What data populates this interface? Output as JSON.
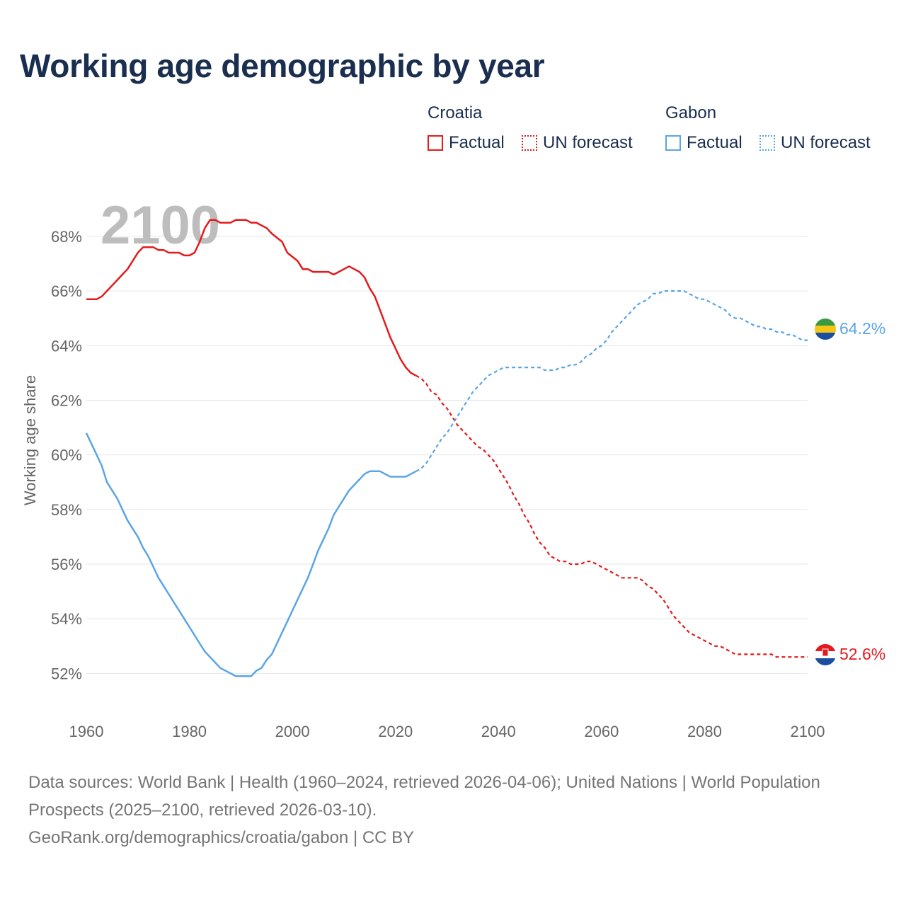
{
  "title": "Working age demographic by year",
  "legend": {
    "groups": [
      {
        "country": "Croatia",
        "color": "#e41a1c",
        "factual_label": "Factual",
        "forecast_label": "UN forecast"
      },
      {
        "country": "Gabon",
        "color": "#5aa5e6",
        "factual_label": "Factual",
        "forecast_label": "UN forecast"
      }
    ]
  },
  "source": {
    "line1": "Data sources: World Bank | Health (1960–2024, retrieved 2026-04-06); United Nations | World Population Prospects (2025–2100, retrieved 2026-03-10).",
    "line2": "GeoRank.org/demographics/croatia/gabon | CC BY"
  },
  "chart_data": {
    "type": "line",
    "title": "Working age demographic by year",
    "current_year_label": "2100",
    "xlabel": "",
    "ylabel": "Working age share",
    "xlim": [
      1960,
      2100
    ],
    "ylim": [
      51,
      69.5
    ],
    "x_ticks": [
      1960,
      1980,
      2000,
      2020,
      2040,
      2060,
      2080,
      2100
    ],
    "y_ticks": [
      52,
      54,
      56,
      58,
      60,
      62,
      64,
      66,
      68
    ],
    "y_tick_labels": [
      "52%",
      "54%",
      "56%",
      "58%",
      "60%",
      "62%",
      "64%",
      "66%",
      "68%"
    ],
    "grid": true,
    "forecast_start": 2024,
    "series": [
      {
        "name": "Croatia",
        "color": "#e41a1c",
        "end_label": "52.6%",
        "flag": "croatia",
        "points": [
          [
            1960,
            65.7
          ],
          [
            1962,
            65.7
          ],
          [
            1963,
            65.8
          ],
          [
            1965,
            66.2
          ],
          [
            1967,
            66.6
          ],
          [
            1968,
            66.8
          ],
          [
            1970,
            67.4
          ],
          [
            1971,
            67.6
          ],
          [
            1973,
            67.6
          ],
          [
            1974,
            67.5
          ],
          [
            1975,
            67.5
          ],
          [
            1976,
            67.4
          ],
          [
            1977,
            67.4
          ],
          [
            1978,
            67.4
          ],
          [
            1979,
            67.3
          ],
          [
            1980,
            67.3
          ],
          [
            1981,
            67.4
          ],
          [
            1982,
            67.8
          ],
          [
            1983,
            68.3
          ],
          [
            1984,
            68.6
          ],
          [
            1985,
            68.6
          ],
          [
            1986,
            68.5
          ],
          [
            1988,
            68.5
          ],
          [
            1989,
            68.6
          ],
          [
            1991,
            68.6
          ],
          [
            1992,
            68.5
          ],
          [
            1993,
            68.5
          ],
          [
            1994,
            68.4
          ],
          [
            1995,
            68.3
          ],
          [
            1996,
            68.1
          ],
          [
            1998,
            67.8
          ],
          [
            1999,
            67.4
          ],
          [
            2001,
            67.1
          ],
          [
            2002,
            66.8
          ],
          [
            2003,
            66.8
          ],
          [
            2004,
            66.7
          ],
          [
            2006,
            66.7
          ],
          [
            2007,
            66.7
          ],
          [
            2008,
            66.6
          ],
          [
            2009,
            66.7
          ],
          [
            2010,
            66.8
          ],
          [
            2011,
            66.9
          ],
          [
            2012,
            66.8
          ],
          [
            2013,
            66.7
          ],
          [
            2014,
            66.5
          ],
          [
            2015,
            66.1
          ],
          [
            2016,
            65.8
          ],
          [
            2017,
            65.3
          ],
          [
            2018,
            64.8
          ],
          [
            2019,
            64.3
          ],
          [
            2020,
            63.9
          ],
          [
            2021,
            63.5
          ],
          [
            2022,
            63.2
          ],
          [
            2023,
            63.0
          ],
          [
            2024,
            62.9
          ],
          [
            2025,
            62.8
          ],
          [
            2026,
            62.6
          ],
          [
            2027,
            62.3
          ],
          [
            2028,
            62.2
          ],
          [
            2029,
            61.9
          ],
          [
            2030,
            61.7
          ],
          [
            2031,
            61.4
          ],
          [
            2032,
            61.1
          ],
          [
            2033,
            60.9
          ],
          [
            2034,
            60.7
          ],
          [
            2035,
            60.5
          ],
          [
            2036,
            60.3
          ],
          [
            2037,
            60.2
          ],
          [
            2038,
            60.0
          ],
          [
            2039,
            59.8
          ],
          [
            2040,
            59.5
          ],
          [
            2041,
            59.2
          ],
          [
            2042,
            58.9
          ],
          [
            2043,
            58.5
          ],
          [
            2044,
            58.2
          ],
          [
            2045,
            57.8
          ],
          [
            2046,
            57.5
          ],
          [
            2047,
            57.1
          ],
          [
            2048,
            56.8
          ],
          [
            2049,
            56.6
          ],
          [
            2050,
            56.3
          ],
          [
            2051,
            56.2
          ],
          [
            2052,
            56.1
          ],
          [
            2053,
            56.1
          ],
          [
            2054,
            56.0
          ],
          [
            2055,
            56.0
          ],
          [
            2056,
            56.0
          ],
          [
            2057,
            56.1
          ],
          [
            2058,
            56.1
          ],
          [
            2059,
            56.0
          ],
          [
            2060,
            55.9
          ],
          [
            2061,
            55.8
          ],
          [
            2062,
            55.7
          ],
          [
            2063,
            55.6
          ],
          [
            2064,
            55.5
          ],
          [
            2065,
            55.5
          ],
          [
            2066,
            55.5
          ],
          [
            2067,
            55.5
          ],
          [
            2068,
            55.4
          ],
          [
            2069,
            55.2
          ],
          [
            2070,
            55.1
          ],
          [
            2071,
            54.9
          ],
          [
            2072,
            54.7
          ],
          [
            2073,
            54.4
          ],
          [
            2074,
            54.1
          ],
          [
            2075,
            53.9
          ],
          [
            2076,
            53.7
          ],
          [
            2077,
            53.5
          ],
          [
            2078,
            53.4
          ],
          [
            2079,
            53.3
          ],
          [
            2080,
            53.2
          ],
          [
            2081,
            53.1
          ],
          [
            2082,
            53.0
          ],
          [
            2083,
            53.0
          ],
          [
            2084,
            52.9
          ],
          [
            2085,
            52.8
          ],
          [
            2086,
            52.7
          ],
          [
            2087,
            52.7
          ],
          [
            2090,
            52.7
          ],
          [
            2092,
            52.7
          ],
          [
            2093,
            52.7
          ],
          [
            2094,
            52.6
          ],
          [
            2096,
            52.6
          ],
          [
            2098,
            52.6
          ],
          [
            2100,
            52.6
          ]
        ]
      },
      {
        "name": "Gabon",
        "color": "#5aa5e6",
        "end_label": "64.2%",
        "flag": "gabon",
        "points": [
          [
            1960,
            60.8
          ],
          [
            1961,
            60.4
          ],
          [
            1962,
            60.0
          ],
          [
            1963,
            59.6
          ],
          [
            1964,
            59.0
          ],
          [
            1965,
            58.7
          ],
          [
            1966,
            58.4
          ],
          [
            1967,
            58.0
          ],
          [
            1968,
            57.6
          ],
          [
            1969,
            57.3
          ],
          [
            1970,
            57.0
          ],
          [
            1971,
            56.6
          ],
          [
            1972,
            56.3
          ],
          [
            1973,
            55.9
          ],
          [
            1974,
            55.5
          ],
          [
            1975,
            55.2
          ],
          [
            1976,
            54.9
          ],
          [
            1977,
            54.6
          ],
          [
            1978,
            54.3
          ],
          [
            1979,
            54.0
          ],
          [
            1980,
            53.7
          ],
          [
            1981,
            53.4
          ],
          [
            1982,
            53.1
          ],
          [
            1983,
            52.8
          ],
          [
            1984,
            52.6
          ],
          [
            1985,
            52.4
          ],
          [
            1986,
            52.2
          ],
          [
            1987,
            52.1
          ],
          [
            1988,
            52.0
          ],
          [
            1989,
            51.9
          ],
          [
            1990,
            51.9
          ],
          [
            1991,
            51.9
          ],
          [
            1992,
            51.9
          ],
          [
            1993,
            52.1
          ],
          [
            1994,
            52.2
          ],
          [
            1995,
            52.5
          ],
          [
            1996,
            52.7
          ],
          [
            1997,
            53.1
          ],
          [
            1998,
            53.5
          ],
          [
            1999,
            53.9
          ],
          [
            2000,
            54.3
          ],
          [
            2001,
            54.7
          ],
          [
            2002,
            55.1
          ],
          [
            2003,
            55.5
          ],
          [
            2004,
            56.0
          ],
          [
            2005,
            56.5
          ],
          [
            2006,
            56.9
          ],
          [
            2007,
            57.3
          ],
          [
            2008,
            57.8
          ],
          [
            2009,
            58.1
          ],
          [
            2010,
            58.4
          ],
          [
            2011,
            58.7
          ],
          [
            2012,
            58.9
          ],
          [
            2013,
            59.1
          ],
          [
            2014,
            59.3
          ],
          [
            2015,
            59.4
          ],
          [
            2016,
            59.4
          ],
          [
            2017,
            59.4
          ],
          [
            2018,
            59.3
          ],
          [
            2019,
            59.2
          ],
          [
            2020,
            59.2
          ],
          [
            2021,
            59.2
          ],
          [
            2022,
            59.2
          ],
          [
            2023,
            59.3
          ],
          [
            2024,
            59.4
          ],
          [
            2025,
            59.5
          ],
          [
            2026,
            59.7
          ],
          [
            2027,
            60.0
          ],
          [
            2028,
            60.3
          ],
          [
            2029,
            60.6
          ],
          [
            2030,
            60.8
          ],
          [
            2031,
            61.1
          ],
          [
            2032,
            61.4
          ],
          [
            2033,
            61.7
          ],
          [
            2034,
            62.0
          ],
          [
            2035,
            62.3
          ],
          [
            2036,
            62.5
          ],
          [
            2037,
            62.7
          ],
          [
            2038,
            62.9
          ],
          [
            2039,
            63.0
          ],
          [
            2040,
            63.1
          ],
          [
            2041,
            63.2
          ],
          [
            2042,
            63.2
          ],
          [
            2043,
            63.2
          ],
          [
            2044,
            63.2
          ],
          [
            2045,
            63.2
          ],
          [
            2046,
            63.2
          ],
          [
            2047,
            63.2
          ],
          [
            2048,
            63.2
          ],
          [
            2049,
            63.1
          ],
          [
            2050,
            63.1
          ],
          [
            2051,
            63.1
          ],
          [
            2052,
            63.2
          ],
          [
            2053,
            63.2
          ],
          [
            2054,
            63.3
          ],
          [
            2055,
            63.3
          ],
          [
            2056,
            63.4
          ],
          [
            2057,
            63.6
          ],
          [
            2058,
            63.7
          ],
          [
            2059,
            63.9
          ],
          [
            2060,
            64.0
          ],
          [
            2061,
            64.2
          ],
          [
            2062,
            64.5
          ],
          [
            2063,
            64.7
          ],
          [
            2064,
            64.9
          ],
          [
            2065,
            65.1
          ],
          [
            2066,
            65.3
          ],
          [
            2067,
            65.5
          ],
          [
            2068,
            65.6
          ],
          [
            2069,
            65.7
          ],
          [
            2070,
            65.9
          ],
          [
            2071,
            65.9
          ],
          [
            2072,
            66.0
          ],
          [
            2073,
            66.0
          ],
          [
            2074,
            66.0
          ],
          [
            2075,
            66.0
          ],
          [
            2076,
            66.0
          ],
          [
            2077,
            65.9
          ],
          [
            2078,
            65.8
          ],
          [
            2079,
            65.7
          ],
          [
            2080,
            65.7
          ],
          [
            2081,
            65.6
          ],
          [
            2082,
            65.5
          ],
          [
            2083,
            65.4
          ],
          [
            2084,
            65.3
          ],
          [
            2085,
            65.1
          ],
          [
            2086,
            65.0
          ],
          [
            2087,
            65.0
          ],
          [
            2088,
            64.9
          ],
          [
            2089,
            64.8
          ],
          [
            2090,
            64.7
          ],
          [
            2091,
            64.7
          ],
          [
            2092,
            64.6
          ],
          [
            2093,
            64.6
          ],
          [
            2094,
            64.5
          ],
          [
            2095,
            64.5
          ],
          [
            2096,
            64.4
          ],
          [
            2097,
            64.4
          ],
          [
            2098,
            64.3
          ],
          [
            2099,
            64.2
          ],
          [
            2100,
            64.2
          ]
        ]
      }
    ]
  }
}
